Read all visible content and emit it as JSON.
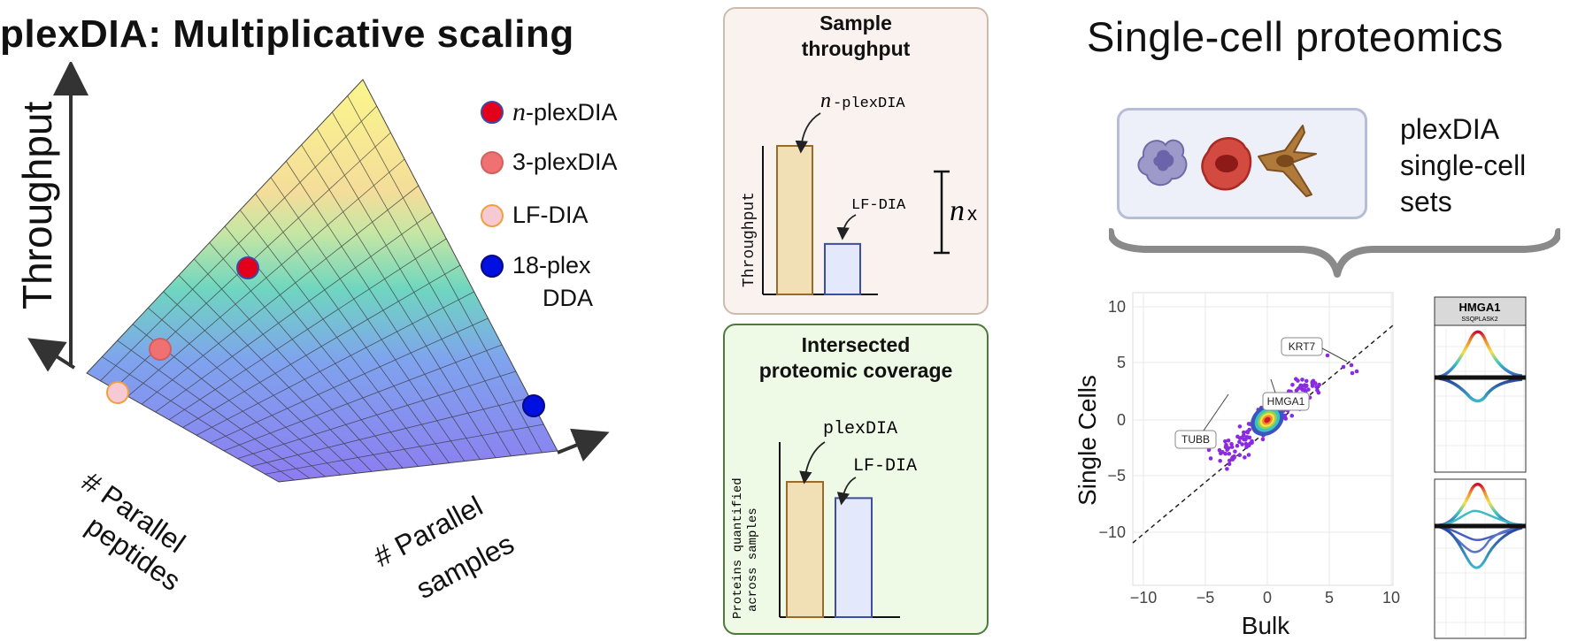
{
  "left_panel": {
    "title": "plexDIA: Multiplicative scaling",
    "y_axis_label": "Throughput",
    "x_axis_left_label": [
      "# Parallel",
      "peptides"
    ],
    "x_axis_right_label": [
      "# Parallel",
      "samples"
    ],
    "legend": [
      {
        "label_prefix": "n",
        "label": "-plexDIA",
        "color": "#e3001b",
        "border": "#3a4aa8"
      },
      {
        "label_prefix": "",
        "label": "3-plexDIA",
        "color": "#f07171",
        "border": "#d06060"
      },
      {
        "label_prefix": "",
        "label": "LF-DIA",
        "color": "#f7c9d2",
        "border": "#f0a040"
      },
      {
        "label_prefix": "",
        "label": "18-plex",
        "label2": "DDA",
        "color": "#0010e0",
        "border": "#0a0a80"
      }
    ]
  },
  "middle_top": {
    "title_line1": "Sample",
    "title_line2": "throughput",
    "y_label": "Throughput",
    "bar1_label_prefix": "n",
    "bar1_label": "-plexDIA",
    "bar2_label": "LF-DIA",
    "bracket_prefix": "n",
    "bracket_suffix": "x",
    "bar1_value": 1.0,
    "bar2_value": 0.34,
    "bar1_color": "#f1dfb5",
    "bar2_color": "#e3e9fb"
  },
  "middle_bottom": {
    "title_line1": "Intersected",
    "title_line2": "proteomic coverage",
    "y_label_line1": "Proteins quantified",
    "y_label_line2": "across samples",
    "bar1_label": "plexDIA",
    "bar2_label": "LF-DIA",
    "bar1_value": 1.0,
    "bar2_value": 0.88
  },
  "right_panel": {
    "title": "Single-cell proteomics",
    "sets_label": [
      "plexDIA",
      "single-cell",
      "sets"
    ],
    "scatter": {
      "xlabel": "Bulk",
      "ylabel": "Single Cells",
      "xticks": [
        "−10",
        "−5",
        "0",
        "5",
        "10"
      ],
      "yticks": [
        "10",
        "5",
        "0",
        "−5",
        "−10"
      ],
      "annotations": [
        "KRT7",
        "HMGA1",
        "TUBB"
      ]
    },
    "peak_plot": {
      "protein": "HMGA1",
      "peptide": "SSQPLASK2"
    }
  }
}
